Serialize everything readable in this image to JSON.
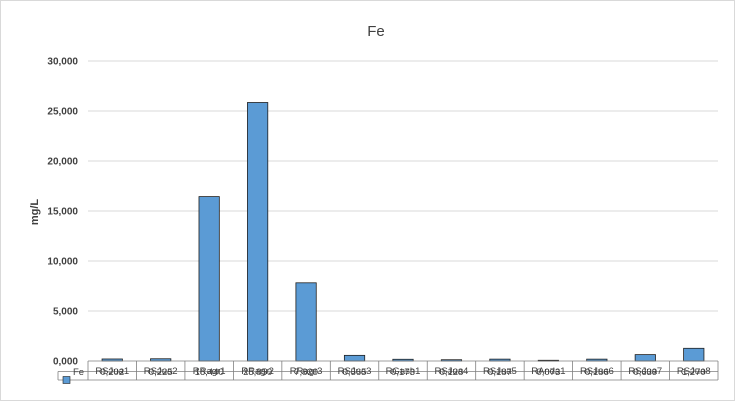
{
  "chart_data": {
    "type": "bar",
    "title": "Fe",
    "ylabel": "mg/L",
    "xlabel": "",
    "ylim": [
      0,
      30000
    ],
    "yticks": [
      0,
      5000,
      10000,
      15000,
      20000,
      25000,
      30000
    ],
    "ytick_labels": [
      "0,000",
      "5,000",
      "10,000",
      "15,000",
      "20,000",
      "25,000",
      "30,000"
    ],
    "grid": true,
    "legend": "in data table",
    "categories": [
      "RSJua1",
      "RSJua2",
      "RRagr1",
      "RRagr2",
      "RRagr3",
      "RSJua3",
      "RGash1",
      "RSJua4",
      "RSJua5",
      "RAnda1",
      "RSJua6",
      "RSJua7",
      "RSJua8"
    ],
    "series": [
      {
        "name": "Fe",
        "color": "#5b9bd5",
        "values": [
          202,
          225,
          16440,
          25850,
          7820,
          565,
          173,
          128,
          187,
          73,
          186,
          639,
          1270
        ],
        "value_labels": [
          "0,202",
          "0,225",
          "16,440",
          "25,850",
          "7,820",
          "0,565",
          "0,173",
          "0,128",
          "0,187",
          "0,073",
          "0,186",
          "0,639",
          "1,270"
        ]
      }
    ]
  }
}
